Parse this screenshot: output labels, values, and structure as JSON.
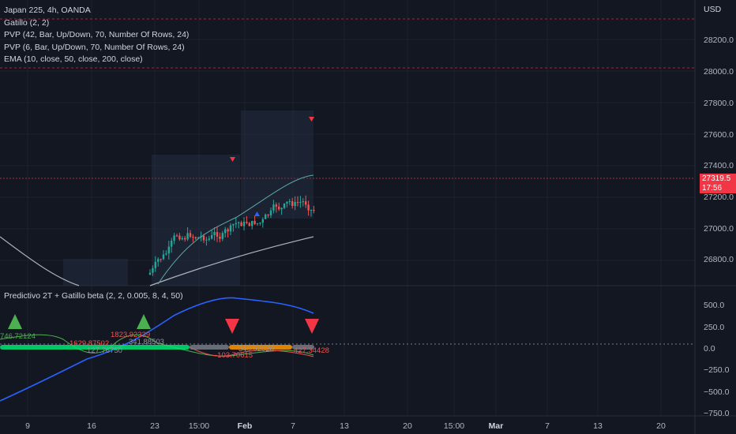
{
  "header": {
    "symbol": "Japan 225, 4h, OANDA",
    "studies": [
      "Gatillo (2, 2)",
      "PVP (42, Bar, Up/Down, 70, Number Of Rows, 24)",
      "PVP (6, Bar, Up/Down, 70, Number Of Rows, 24)",
      "EMA (10, close, 50, close, 200, close)"
    ]
  },
  "indicator": {
    "title": "Predictivo 2T + Gatillo beta (2, 2, 0.005, 8, 4, 50)"
  },
  "price_axis": {
    "currency": "USD",
    "labels": [
      "28200.0",
      "28000.0",
      "27800.0",
      "27600.0",
      "27400.0",
      "27200.0",
      "27000.0",
      "26800.0"
    ],
    "last_price": "27319.5",
    "countdown": "17:56"
  },
  "indicator_axis": {
    "labels": [
      "500.0",
      "250.0",
      "0.0",
      "−250.0",
      "−500.0",
      "−750.0"
    ]
  },
  "time_axis": {
    "labels": [
      "9",
      "16",
      "23",
      "15:00",
      "Feb",
      "7",
      "13",
      "20",
      "15:00",
      "Mar",
      "7",
      "13",
      "20"
    ]
  },
  "annotations": [
    "746.72124",
    "1629.87502",
    "1823.92339",
    "127.76750",
    "341.88503",
    "-103.70615",
    "340.92020",
    "427.34428"
  ],
  "colors": {
    "background": "#131722",
    "up": "#26a69a",
    "down": "#ef5350",
    "bull_marker": "#4caf50",
    "bear_marker": "#f23645",
    "signal_blue": "#2962ff",
    "ema_white": "#d1d4dc",
    "ema_teal": "#5fa8a8"
  }
}
